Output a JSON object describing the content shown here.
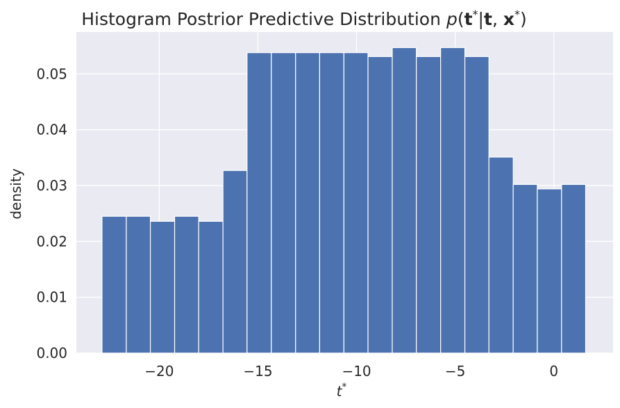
{
  "chart_data": {
    "type": "bar",
    "title": "Histogram Postrior Predictive Distribution",
    "title_math": "p(t*|t, x*)",
    "xlabel": "t*",
    "ylabel": "density",
    "xlim": [
      -24.2,
      3.0
    ],
    "ylim": [
      0,
      0.0575
    ],
    "xticks": [
      -20,
      -15,
      -10,
      -5,
      0
    ],
    "xtick_labels": [
      "−20",
      "−15",
      "−10",
      "−5",
      "0"
    ],
    "yticks": [
      0.0,
      0.01,
      0.02,
      0.03,
      0.04,
      0.05
    ],
    "ytick_labels": [
      "0.00",
      "0.01",
      "0.02",
      "0.03",
      "0.04",
      "0.05"
    ],
    "grid": true,
    "bin_edges": [
      -22.9,
      -21.67,
      -20.45,
      -19.22,
      -18.0,
      -16.77,
      -15.55,
      -14.32,
      -13.09,
      -11.87,
      -10.64,
      -9.42,
      -8.19,
      -6.97,
      -5.74,
      -4.51,
      -3.29,
      -2.06,
      -0.84,
      0.39,
      1.61
    ],
    "values": [
      0.0245,
      0.0245,
      0.0236,
      0.0245,
      0.0236,
      0.0327,
      0.0538,
      0.0538,
      0.0538,
      0.0538,
      0.0538,
      0.0531,
      0.0547,
      0.0531,
      0.0547,
      0.0531,
      0.0351,
      0.0302,
      0.0294,
      0.0302
    ],
    "colors": {
      "bar": "#4c72b0",
      "bar_edge": "#ffffff",
      "plot_background": "#eaeaf2",
      "grid": "#ffffff",
      "text": "#262626"
    }
  }
}
